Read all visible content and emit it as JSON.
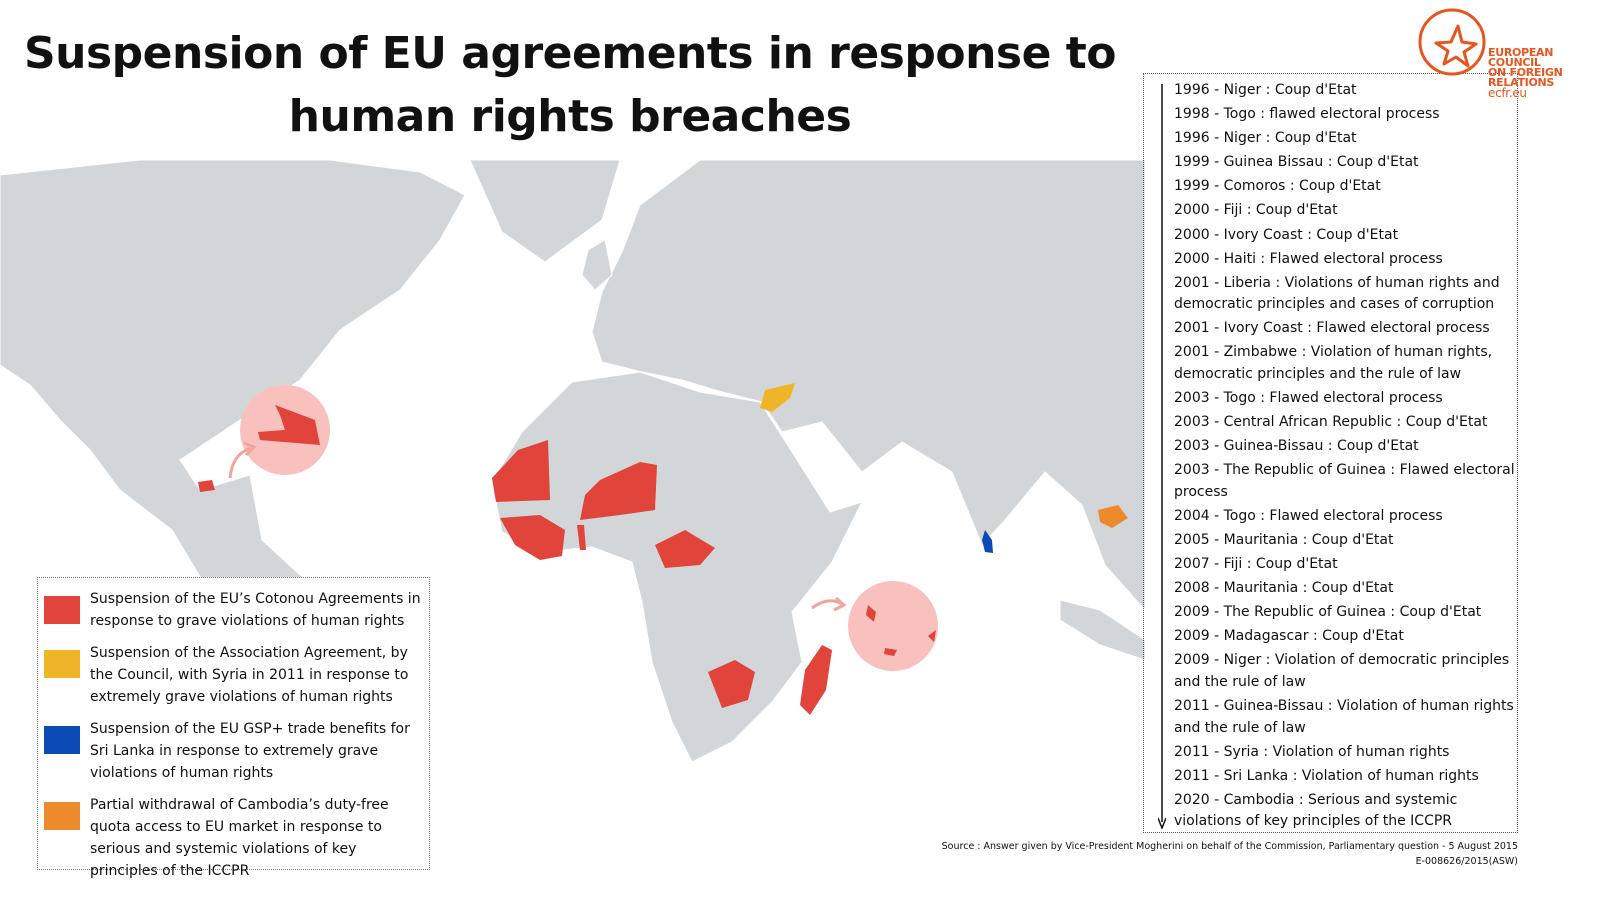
{
  "header": {
    "title": "Suspension of EU agreements in response to human rights breaches"
  },
  "logo": {
    "lines": [
      "EUROPEAN",
      "COUNCIL",
      "ON FOREIGN",
      "RELATIONS"
    ],
    "url": "ecfr.eu"
  },
  "legend": [
    {
      "color": "#e0443a",
      "text": "Suspension of the EU’s Cotonou Agreements in response to grave violations of human rights"
    },
    {
      "color": "#f0b429",
      "text": "Suspension of the Association Agreement, by the Council, with Syria in 2011 in response to extremely grave violations of human rights"
    },
    {
      "color": "#0a4bb5",
      "text": "Suspension of the EU GSP+ trade benefits for Sri Lanka in response to extremely grave violations of human rights"
    },
    {
      "color": "#ec8a2d",
      "text": "Partial withdrawal of Cambodia’s duty-free quota access to EU market in response to serious and systemic violations of key principles of the ICCPR"
    }
  ],
  "timeline": [
    "1996 - Niger : Coup d'Etat",
    "1998 - Togo : flawed electoral process",
    "1996 - Niger : Coup d'Etat",
    "1999 - Guinea Bissau : Coup d'Etat",
    "1999 - Comoros : Coup d'Etat",
    "2000 - Fiji : Coup d'Etat",
    "2000 - Ivory Coast : Coup d'Etat",
    "2000 - Haiti : Flawed electoral process",
    "2001 - Liberia : Violations of human rights and democratic principles and cases of corruption",
    "2001 - Ivory Coast : Flawed electoral process",
    "2001 - Zimbabwe : Violation of human rights, democratic principles and the rule of law",
    "2003 - Togo : Flawed electoral process",
    "2003 - Central African Republic : Coup d'Etat",
    "2003 - Guinea-Bissau : Coup d'Etat",
    "2003 - The Republic of Guinea : Flawed electoral process",
    "2004 - Togo : Flawed electoral process",
    "2005 - Mauritania : Coup d'Etat",
    "2007 - Fiji : Coup d'Etat",
    "2008 - Mauritania : Coup d'Etat",
    "2009 - The Republic of Guinea : Coup d'Etat",
    "2009 - Madagascar : Coup d'Etat",
    "2009 - Niger : Violation of democratic principles and the rule of law",
    "2011 - Guinea-Bissau : Violation of human rights and the rule of law",
    "2011 - Syria : Violation of human rights",
    "2011 - Sri Lanka : Violation of human rights",
    "2020 - Cambodia : Serious and systemic violations of key principles of the ICCPR"
  ],
  "source": [
    "Source : Answer given by Vice-President Mogherini on behalf of the Commission, Parliamentary question - 5 August 2015",
    "E-008626/2015(ASW)"
  ]
}
